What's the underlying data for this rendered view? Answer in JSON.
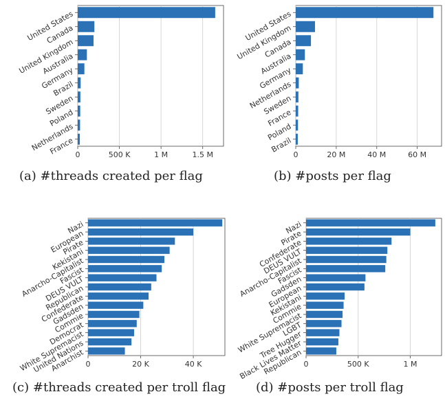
{
  "colors": {
    "bar": "#2a72b5",
    "grid": "#cccccc",
    "axis": "#444444"
  },
  "chart_data": [
    {
      "id": "a",
      "type": "bar",
      "orientation": "horizontal",
      "caption": "(a) #threads created per flag",
      "categories": [
        "United States",
        "Canada",
        "United Kingdom",
        "Australia",
        "Germany",
        "Brazil",
        "Sweden",
        "Poland",
        "Netherlands",
        "France"
      ],
      "values": [
        1650000,
        200000,
        190000,
        110000,
        80000,
        35000,
        32000,
        30000,
        28000,
        25000
      ],
      "xlim": [
        0,
        1750000
      ],
      "xticks": [
        0,
        500000,
        1000000,
        1500000
      ],
      "xtick_labels": [
        "0",
        "500 K",
        "1 M",
        "1.5 M"
      ],
      "grid": true
    },
    {
      "id": "b",
      "type": "bar",
      "orientation": "horizontal",
      "caption": "(b) #posts per flag",
      "categories": [
        "United States",
        "United Kingdom",
        "Canada",
        "Australia",
        "Germany",
        "Netherlands",
        "Sweden",
        "France",
        "Poland",
        "Brazil"
      ],
      "values": [
        68000000,
        9500000,
        7500000,
        4500000,
        3500000,
        1500000,
        1300000,
        1200000,
        1100000,
        1000000
      ],
      "xlim": [
        0,
        72000000
      ],
      "xticks": [
        0,
        20000000,
        40000000,
        60000000
      ],
      "xtick_labels": [
        "0",
        "20 M",
        "40 M",
        "60 M"
      ],
      "grid": true
    },
    {
      "id": "c",
      "type": "bar",
      "orientation": "horizontal",
      "caption_words": [
        "(c)",
        "#threads",
        "created",
        "per",
        "troll",
        "flag"
      ],
      "categories": [
        "Nazi",
        "European",
        "Pirate",
        "Kekistani",
        "Anarcho-Capitalist",
        "Fascist",
        "DEUS VULT",
        "Republican",
        "Confederate",
        "Gadsden",
        "Commie",
        "Democrat",
        "White Supremacist",
        "United Nations",
        "Anarchist"
      ],
      "values": [
        51000,
        40000,
        33000,
        31000,
        29000,
        28000,
        26000,
        24000,
        23000,
        21000,
        19500,
        18500,
        17500,
        16500,
        14000
      ],
      "xlim": [
        0,
        52000
      ],
      "xticks": [
        0,
        20000,
        40000
      ],
      "xtick_labels": [
        "0",
        "20 K",
        "40 K"
      ],
      "grid": true
    },
    {
      "id": "d",
      "type": "bar",
      "orientation": "horizontal",
      "caption": "(d) #posts per troll flag",
      "categories": [
        "Nazi",
        "Pirate",
        "Confederate",
        "DEUS VULT",
        "Anarcho-Capitalist",
        "Fascist",
        "Gadsden",
        "European",
        "Kekistani",
        "Commie",
        "White Supremacist",
        "LGBT",
        "Tree Hugger",
        "Black Lives Matter",
        "Republican"
      ],
      "values": [
        1240000,
        1000000,
        820000,
        780000,
        770000,
        760000,
        570000,
        560000,
        370000,
        360000,
        350000,
        340000,
        320000,
        310000,
        290000
      ],
      "xlim": [
        0,
        1300000
      ],
      "xticks": [
        0,
        500000,
        1000000
      ],
      "xtick_labels": [
        "0",
        "500 K",
        "1 M"
      ],
      "grid": true
    }
  ]
}
